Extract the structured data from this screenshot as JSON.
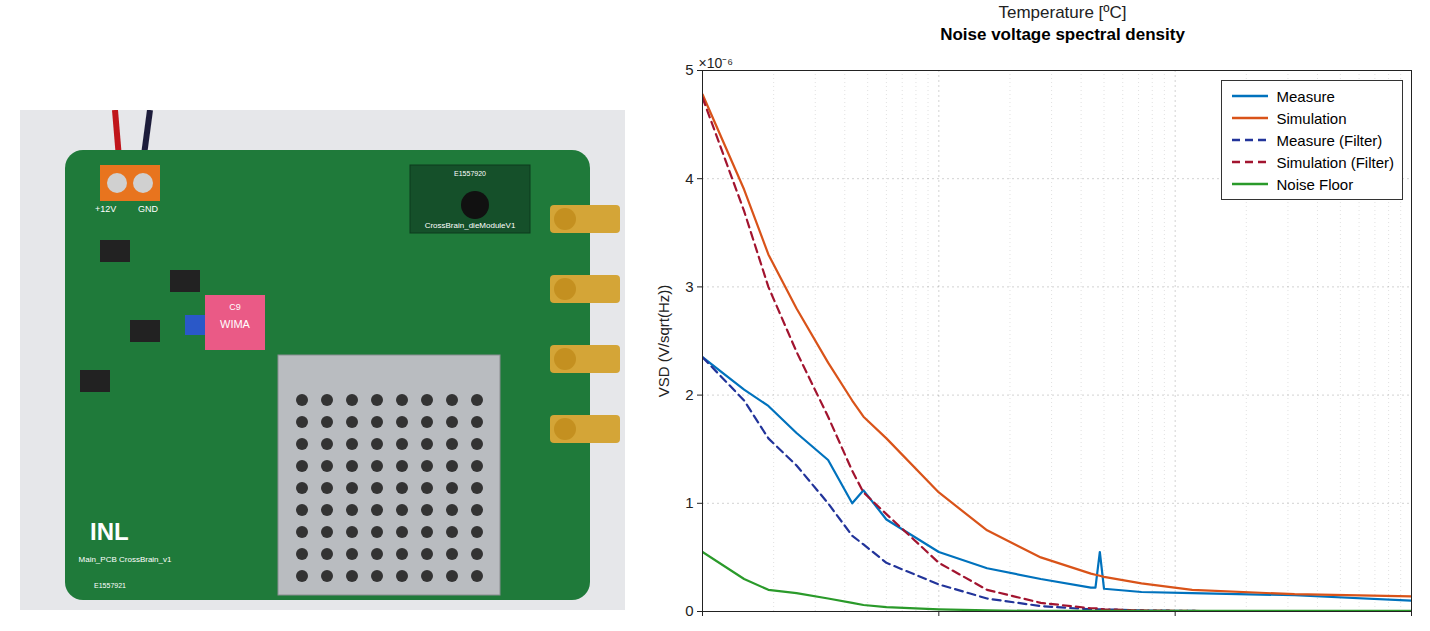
{
  "chart_data": {
    "type": "line",
    "title": "Noise voltage spectral density",
    "annotations": [
      "Temperature [ºC]",
      "×10⁻⁶"
    ],
    "y_label": "VSD (V/sqrt(Hz))",
    "log": "x",
    "grid": true,
    "legend": "northeast",
    "tick_labels": "y",
    "xlim": [
      1,
      1000
    ],
    "xticks": [
      1,
      10,
      100,
      1000
    ],
    "ylim": [
      0,
      5e-06
    ],
    "yticks": [
      0,
      {
        "value": 1e-06,
        "label": "1"
      },
      {
        "value": 2e-06,
        "label": "2"
      },
      {
        "value": 3e-06,
        "label": "3"
      },
      {
        "value": 4e-06,
        "label": "4"
      },
      {
        "value": 5e-06,
        "label": "5"
      }
    ],
    "x": [
      1,
      1.5,
      1.9,
      2.5,
      3.4,
      4.3,
      4.8,
      6,
      10,
      16,
      27,
      44,
      46,
      48,
      50,
      72,
      118,
      320,
      1000
    ],
    "series": [
      {
        "name": "Measure",
        "color": "#0072BD",
        "line_style": "solid",
        "values": [
          2.35e-06,
          2.05e-06,
          1.9e-06,
          1.65e-06,
          1.4e-06,
          1e-06,
          1.12e-06,
          8.5e-07,
          5.5e-07,
          4e-07,
          3e-07,
          2.2e-07,
          2.2e-07,
          5.5e-07,
          2.1e-07,
          1.8e-07,
          1.7e-07,
          1.5e-07,
          1e-07
        ]
      },
      {
        "name": "Simulation",
        "color": "#D95319",
        "line_style": "solid",
        "values": [
          4.78e-06,
          3.9e-06,
          3.3e-06,
          2.8e-06,
          2.3e-06,
          1.95e-06,
          1.8e-06,
          1.6e-06,
          1.1e-06,
          7.5e-07,
          5e-07,
          3.5e-07,
          3.4e-07,
          3.3e-07,
          3.2e-07,
          2.6e-07,
          2e-07,
          1.6e-07,
          1.4e-07
        ]
      },
      {
        "name": "Measure (Filter)",
        "color": "#22349a",
        "line_style": "dashed",
        "values": [
          2.35e-06,
          1.95e-06,
          1.6e-06,
          1.35e-06,
          1e-06,
          7e-07,
          6.2e-07,
          4.5e-07,
          2.5e-07,
          1.2e-07,
          5e-08,
          2e-08,
          2e-08,
          2e-08,
          2e-08,
          1e-08,
          5e-09,
          0,
          0
        ]
      },
      {
        "name": "Simulation (Filter)",
        "color": "#A2142F",
        "line_style": "dashed",
        "values": [
          4.75e-06,
          3.7e-06,
          3e-06,
          2.4e-06,
          1.8e-06,
          1.3e-06,
          1.1e-06,
          9e-07,
          4.5e-07,
          2e-07,
          8e-08,
          3e-08,
          3e-08,
          2.5e-08,
          2e-08,
          1e-08,
          5e-09,
          0,
          0
        ]
      },
      {
        "name": "Noise Floor",
        "color": "#2a9a2a",
        "line_style": "solid",
        "values": [
          5.5e-07,
          3e-07,
          2e-07,
          1.7e-07,
          1.2e-07,
          8e-08,
          6e-08,
          4e-08,
          2e-08,
          1e-08,
          5e-09,
          5e-09,
          5e-09,
          5e-09,
          5e-09,
          5e-09,
          5e-09,
          5e-09,
          5e-09
        ]
      }
    ]
  },
  "photo": {
    "board_labels": [
      "+12V",
      "GND",
      "CrossBrain_dieModuleV1",
      "E1557920",
      "INL",
      "Main_PCB CrossBrain_v1",
      "WIMA",
      "C9",
      "E1557921"
    ]
  }
}
